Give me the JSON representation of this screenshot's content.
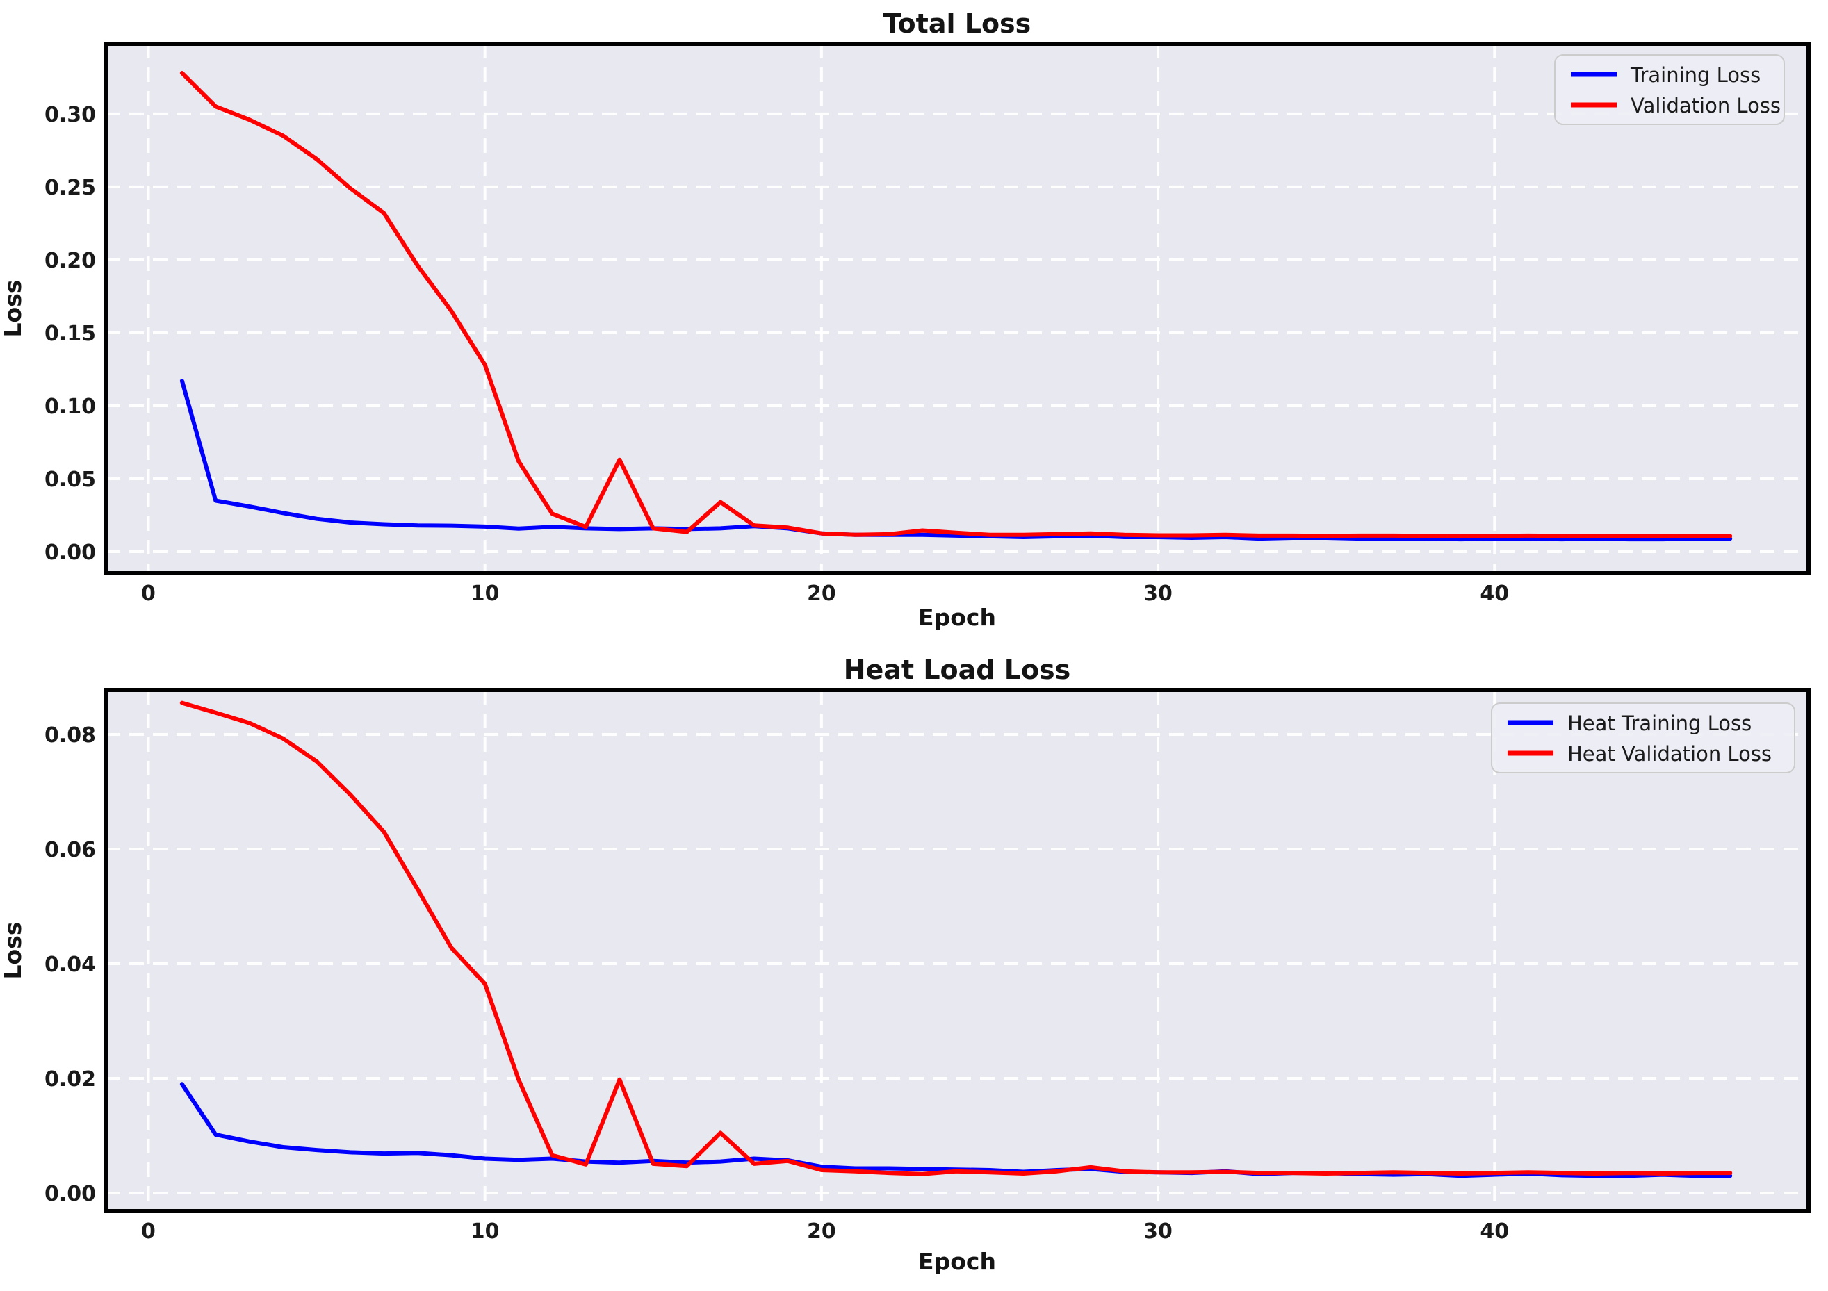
{
  "colors": {
    "training_line": "#0000FF",
    "validation_line": "#FF0000",
    "plot_background": "#E8E8F1",
    "grid": "#FFFFFF",
    "frame": "#000000"
  },
  "chart_data": [
    {
      "type": "line",
      "title": "Total Loss",
      "xlabel": "Epoch",
      "ylabel": "Loss",
      "grid": true,
      "legend_position": "upper right",
      "xlim": [
        -1.27,
        49.33
      ],
      "ylim": [
        -0.01476,
        0.348
      ],
      "xticks": {
        "values": [
          0,
          10,
          20,
          30,
          40
        ],
        "labels": [
          "0",
          "10",
          "20",
          "30",
          "40"
        ]
      },
      "yticks": {
        "values": [
          0.0,
          0.05,
          0.1,
          0.15,
          0.2,
          0.25,
          0.3
        ],
        "labels": [
          "0.00",
          "0.05",
          "0.10",
          "0.15",
          "0.20",
          "0.25",
          "0.30"
        ]
      },
      "x": [
        1,
        2,
        3,
        4,
        5,
        6,
        7,
        8,
        9,
        10,
        11,
        12,
        13,
        14,
        15,
        16,
        17,
        18,
        19,
        20,
        21,
        22,
        23,
        24,
        25,
        26,
        27,
        28,
        29,
        30,
        31,
        32,
        33,
        34,
        35,
        36,
        37,
        38,
        39,
        40,
        41,
        42,
        43,
        44,
        45,
        46,
        47
      ],
      "series": [
        {
          "name": "Training Loss",
          "color": "#0000FF",
          "values": [
            0.117,
            0.035,
            0.031,
            0.0265,
            0.0225,
            0.02,
            0.0188,
            0.018,
            0.0178,
            0.0172,
            0.0158,
            0.017,
            0.016,
            0.0155,
            0.016,
            0.0155,
            0.016,
            0.0175,
            0.016,
            0.0125,
            0.0115,
            0.0115,
            0.0115,
            0.011,
            0.0105,
            0.01,
            0.0105,
            0.011,
            0.01,
            0.01,
            0.0095,
            0.01,
            0.009,
            0.0095,
            0.0095,
            0.009,
            0.009,
            0.009,
            0.0085,
            0.009,
            0.009,
            0.0085,
            0.009,
            0.0085,
            0.0085,
            0.009,
            0.009
          ]
        },
        {
          "name": "Validation Loss",
          "color": "#FF0000",
          "values": [
            0.328,
            0.305,
            0.296,
            0.285,
            0.269,
            0.249,
            0.232,
            0.196,
            0.165,
            0.128,
            0.062,
            0.026,
            0.017,
            0.063,
            0.016,
            0.0135,
            0.034,
            0.018,
            0.0165,
            0.0125,
            0.0115,
            0.012,
            0.0145,
            0.013,
            0.0115,
            0.0115,
            0.012,
            0.0125,
            0.0115,
            0.0112,
            0.0112,
            0.0115,
            0.011,
            0.011,
            0.0108,
            0.011,
            0.011,
            0.0108,
            0.0105,
            0.0108,
            0.011,
            0.0108,
            0.0105,
            0.0107,
            0.0105,
            0.0107,
            0.0107
          ]
        }
      ]
    },
    {
      "type": "line",
      "title": "Heat Load Loss",
      "xlabel": "Epoch",
      "ylabel": "Loss",
      "grid": true,
      "legend_position": "upper right",
      "xlim": [
        -1.27,
        49.33
      ],
      "ylim": [
        -0.00315,
        0.08776
      ],
      "xticks": {
        "values": [
          0,
          10,
          20,
          30,
          40
        ],
        "labels": [
          "0",
          "10",
          "20",
          "30",
          "40"
        ]
      },
      "yticks": {
        "values": [
          0.0,
          0.02,
          0.04,
          0.06,
          0.08
        ],
        "labels": [
          "0.00",
          "0.02",
          "0.04",
          "0.06",
          "0.08"
        ]
      },
      "x": [
        1,
        2,
        3,
        4,
        5,
        6,
        7,
        8,
        9,
        10,
        11,
        12,
        13,
        14,
        15,
        16,
        17,
        18,
        19,
        20,
        21,
        22,
        23,
        24,
        25,
        26,
        27,
        28,
        29,
        30,
        31,
        32,
        33,
        34,
        35,
        36,
        37,
        38,
        39,
        40,
        41,
        42,
        43,
        44,
        45,
        46,
        47
      ],
      "series": [
        {
          "name": "Heat Training Loss",
          "color": "#0000FF",
          "values": [
            0.019,
            0.0102,
            0.009,
            0.008,
            0.0075,
            0.0071,
            0.0069,
            0.007,
            0.0066,
            0.006,
            0.0058,
            0.006,
            0.0055,
            0.0053,
            0.0056,
            0.0053,
            0.0055,
            0.006,
            0.0057,
            0.0046,
            0.0043,
            0.0043,
            0.0042,
            0.0041,
            0.004,
            0.0037,
            0.004,
            0.0042,
            0.0037,
            0.0036,
            0.0035,
            0.0038,
            0.0033,
            0.0035,
            0.0035,
            0.0033,
            0.0032,
            0.0033,
            0.003,
            0.0032,
            0.0034,
            0.0031,
            0.003,
            0.003,
            0.0032,
            0.003,
            0.003
          ]
        },
        {
          "name": "Heat Validation Loss",
          "color": "#FF0000",
          "values": [
            0.0855,
            0.0838,
            0.082,
            0.0793,
            0.0753,
            0.0695,
            0.063,
            0.053,
            0.0428,
            0.0365,
            0.0198,
            0.0066,
            0.005,
            0.0198,
            0.0051,
            0.0047,
            0.0105,
            0.0051,
            0.0056,
            0.004,
            0.0038,
            0.0035,
            0.0033,
            0.0038,
            0.0036,
            0.0034,
            0.0038,
            0.0045,
            0.0038,
            0.0036,
            0.0036,
            0.0037,
            0.0035,
            0.0035,
            0.0034,
            0.0035,
            0.0036,
            0.0035,
            0.0034,
            0.0035,
            0.0036,
            0.0035,
            0.0034,
            0.0035,
            0.0034,
            0.0035,
            0.0035
          ]
        }
      ]
    }
  ]
}
